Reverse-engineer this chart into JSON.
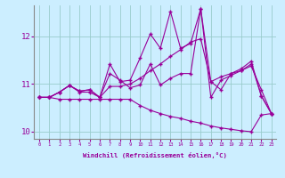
{
  "xlabel": "Windchill (Refroidissement éolien,°C)",
  "xlim": [
    -0.5,
    23.5
  ],
  "ylim": [
    9.85,
    12.65
  ],
  "yticks": [
    10,
    11,
    12
  ],
  "xticks": [
    0,
    1,
    2,
    3,
    4,
    5,
    6,
    7,
    8,
    9,
    10,
    11,
    12,
    13,
    14,
    15,
    16,
    17,
    18,
    19,
    20,
    21,
    22,
    23
  ],
  "bg_color": "#cceeff",
  "line_color": "#990099",
  "grid_color": "#99cccc",
  "lines": [
    [
      10.72,
      10.72,
      10.83,
      10.97,
      10.83,
      10.83,
      10.72,
      11.42,
      11.05,
      11.08,
      11.55,
      12.05,
      11.75,
      12.52,
      11.75,
      11.85,
      12.58,
      10.72,
      11.08,
      11.18,
      11.28,
      11.42,
      10.75,
      10.38
    ],
    [
      10.72,
      10.72,
      10.83,
      10.97,
      10.85,
      10.88,
      10.72,
      10.95,
      10.95,
      11.0,
      11.12,
      11.28,
      11.42,
      11.58,
      11.72,
      11.88,
      11.95,
      11.05,
      11.15,
      11.22,
      11.32,
      11.48,
      10.75,
      10.38
    ],
    [
      10.72,
      10.72,
      10.83,
      10.97,
      10.85,
      10.88,
      10.72,
      11.22,
      11.08,
      10.92,
      10.98,
      11.42,
      10.98,
      11.12,
      11.22,
      11.22,
      12.58,
      11.05,
      10.88,
      11.22,
      11.28,
      11.38,
      10.88,
      10.38
    ],
    [
      10.72,
      10.72,
      10.68,
      10.68,
      10.68,
      10.68,
      10.68,
      10.68,
      10.68,
      10.68,
      10.55,
      10.45,
      10.38,
      10.32,
      10.28,
      10.22,
      10.18,
      10.12,
      10.08,
      10.05,
      10.02,
      10.0,
      10.35,
      10.38
    ]
  ]
}
